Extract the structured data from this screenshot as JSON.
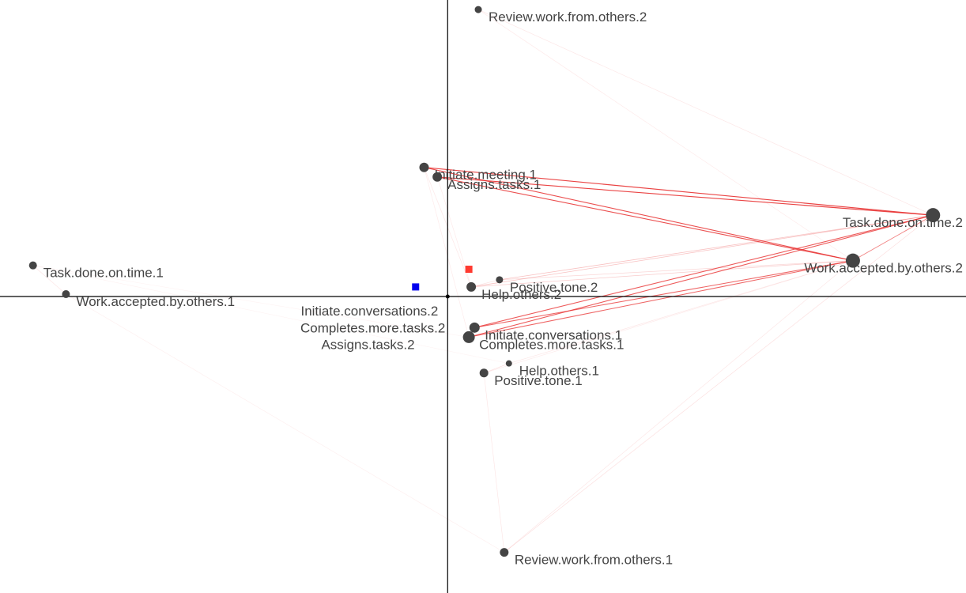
{
  "chart_data": {
    "type": "scatter",
    "title": "",
    "xlabel": "",
    "ylabel": "",
    "grid": false,
    "xlim": [
      -0.95,
      1.1
    ],
    "ylim": [
      -0.62,
      0.62
    ],
    "nodes": [
      {
        "id": "rwo2",
        "label": "Review.work.from.others.2",
        "x": 0.065,
        "y": 0.6,
        "size": 4.5
      },
      {
        "id": "im1",
        "label": "Initiate.meeting.1",
        "x": -0.05,
        "y": 0.27,
        "size": 6
      },
      {
        "id": "at1",
        "label": "Assigns.tasks.1",
        "x": -0.022,
        "y": 0.25,
        "size": 6
      },
      {
        "id": "tdt2",
        "label": "Task.done.on.time.2",
        "x": 1.03,
        "y": 0.17,
        "size": 9
      },
      {
        "id": "tdt1",
        "label": "Task.done.on.time.1",
        "x": -0.88,
        "y": 0.065,
        "size": 5
      },
      {
        "id": "wab2",
        "label": "Work.accepted.by.others.2",
        "x": 0.86,
        "y": 0.075,
        "size": 9
      },
      {
        "id": "pt2",
        "label": "Positive.tone.2",
        "x": 0.11,
        "y": 0.035,
        "size": 4.5
      },
      {
        "id": "ho2",
        "label": "Help.others.2",
        "x": 0.05,
        "y": 0.02,
        "size": 6
      },
      {
        "id": "wab1",
        "label": "Work.accepted.by.others.1",
        "x": -0.81,
        "y": 0.005,
        "size": 5
      },
      {
        "id": "ic1",
        "label": "Initiate.conversations.1",
        "x": 0.057,
        "y": -0.065,
        "size": 6.5
      },
      {
        "id": "cmt1",
        "label": "Completes.more.tasks.1",
        "x": 0.045,
        "y": -0.085,
        "size": 7.5
      },
      {
        "id": "ho1",
        "label": "Help.others.1",
        "x": 0.13,
        "y": -0.14,
        "size": 4
      },
      {
        "id": "pt1",
        "label": "Positive.tone.1",
        "x": 0.077,
        "y": -0.16,
        "size": 5.5
      },
      {
        "id": "rwo1",
        "label": "Review.work.from.others.1",
        "x": 0.12,
        "y": -0.535,
        "size": 5.5
      }
    ],
    "free_labels": [
      {
        "label": "Initiate.conversations.2",
        "x": -0.02,
        "y": -0.04
      },
      {
        "label": "Completes.more.tasks.2",
        "x": -0.005,
        "y": -0.075
      },
      {
        "label": "Assigns.tasks.2",
        "x": -0.07,
        "y": -0.11
      }
    ],
    "group_points": [
      {
        "color": "#ff3a30",
        "x": 0.045,
        "y": 0.057
      },
      {
        "color": "#0000ee",
        "x": -0.068,
        "y": 0.02
      }
    ],
    "edges": [
      {
        "from": "im1",
        "to": "tdt2",
        "weight": 0.9
      },
      {
        "from": "at1",
        "to": "tdt2",
        "weight": 0.9
      },
      {
        "from": "im1",
        "to": "wab2",
        "weight": 0.85
      },
      {
        "from": "at1",
        "to": "wab2",
        "weight": 0.85
      },
      {
        "from": "ic1",
        "to": "tdt2",
        "weight": 0.8
      },
      {
        "from": "cmt1",
        "to": "tdt2",
        "weight": 0.8
      },
      {
        "from": "ic1",
        "to": "wab2",
        "weight": 0.75
      },
      {
        "from": "cmt1",
        "to": "wab2",
        "weight": 0.75
      },
      {
        "from": "tdt2",
        "to": "wab2",
        "weight": 0.6
      },
      {
        "from": "ho2",
        "to": "tdt2",
        "weight": 0.3
      },
      {
        "from": "pt2",
        "to": "tdt2",
        "weight": 0.3
      },
      {
        "from": "ho2",
        "to": "wab2",
        "weight": 0.25
      },
      {
        "from": "pt2",
        "to": "wab2",
        "weight": 0.2
      },
      {
        "from": "rwo2",
        "to": "tdt2",
        "weight": 0.12
      },
      {
        "from": "rwo2",
        "to": "wab2",
        "weight": 0.1
      },
      {
        "from": "rwo1",
        "to": "tdt2",
        "weight": 0.15
      },
      {
        "from": "rwo1",
        "to": "wab2",
        "weight": 0.12
      },
      {
        "from": "pt1",
        "to": "rwo1",
        "weight": 0.12
      },
      {
        "from": "ho1",
        "to": "pt1",
        "weight": 0.15
      },
      {
        "from": "tdt1",
        "to": "wab1",
        "weight": 0.12
      },
      {
        "from": "wab1",
        "to": "rwo1",
        "weight": 0.08
      },
      {
        "from": "tdt1",
        "to": "ho1",
        "weight": 0.06
      },
      {
        "from": "tdt1",
        "to": "cmt1",
        "weight": 0.06
      },
      {
        "from": "im1",
        "to": "ho2",
        "weight": 0.12
      },
      {
        "from": "at1",
        "to": "ho2",
        "weight": 0.1
      },
      {
        "from": "im1",
        "to": "cmt1",
        "weight": 0.1
      },
      {
        "from": "ho2",
        "to": "pt2",
        "weight": 0.15
      },
      {
        "from": "ho1",
        "to": "wab2",
        "weight": 0.12
      },
      {
        "from": "pt1",
        "to": "wab2",
        "weight": 0.1
      }
    ],
    "edge_color": "#e83030",
    "node_color": "#444444",
    "axis_color": "#000000"
  }
}
